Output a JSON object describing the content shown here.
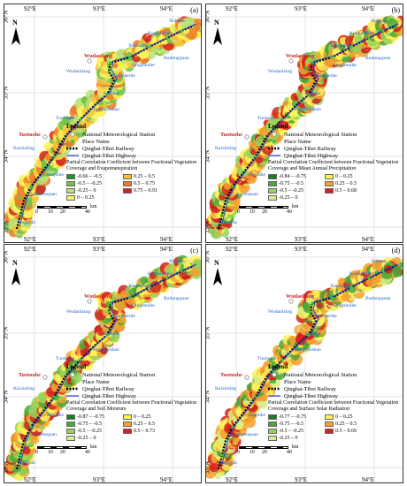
{
  "panels": [
    {
      "letter": "(a)",
      "coef_title": "Partial Correlation Coefficient between Fractional Vegetation Coverage and Evapotranspiration",
      "classes": [
        "-0.66 – -0.5",
        "-0.5 – -0.25",
        "-0.25 – 0",
        "0 – 0.25",
        "0.25 – 0.5",
        "0.5 – 0.75",
        "0.75 – 0.91"
      ],
      "class_colors": [
        "#2e8b2e",
        "#6ec24a",
        "#b7e07a",
        "#fff35a",
        "#f7c23a",
        "#f07a24",
        "#d42020"
      ]
    },
    {
      "letter": "(b)",
      "coef_title": "Partial Correlation Coefficient between Fractional Vegetation Coverage and Mean Annual Precipitation",
      "classes": [
        "-0.84 – -0.75",
        "-0.75 – -0.5",
        "-0.5 – -0.25",
        "-0.25 – 0",
        "0 – 0.25",
        "0.25 – 0.5",
        "0.5 – 0.68"
      ],
      "class_colors": [
        "#1e7a1e",
        "#4aa83a",
        "#95d25c",
        "#d9ef8a",
        "#fff35a",
        "#f5a030",
        "#d42020"
      ]
    },
    {
      "letter": "(c)",
      "coef_title": "Partial Correlation Coefficient between Fractional Vegetation Coverage and Soil Moisture",
      "classes": [
        "-0.87 – -0.75",
        "-0.75 – -0.5",
        "-0.5 – -0.25",
        "-0.25 – 0",
        "0 – 0.25",
        "0.25 – 0.5",
        "0.5 – 0.73"
      ],
      "class_colors": [
        "#1e7a1e",
        "#4aa83a",
        "#95d25c",
        "#d9ef8a",
        "#fff35a",
        "#f5a030",
        "#d42020"
      ]
    },
    {
      "letter": "(d)",
      "coef_title": "Partial Correlation Coefficient between Fractional Vegetation Coverage and Surface Solar Radiation",
      "classes": [
        "-0.77 – -0.75",
        "-0.75 – -0.5",
        "-0.5 – -0.25",
        "-0.25 – 0",
        "0 – 0.25",
        "0.25 – 0.5",
        "0.5 – 0.69"
      ],
      "class_colors": [
        "#1e7a1e",
        "#4aa83a",
        "#95d25c",
        "#d9ef8a",
        "#fff35a",
        "#f5a030",
        "#d42020"
      ]
    }
  ],
  "legend": {
    "title": "Legend",
    "station": "National Meteorological Station",
    "place": "Place Name",
    "railway": "Qinghai-Tibet Railway",
    "highway": "Qinghai-Tibet Highway"
  },
  "axes": {
    "x_ticks": [
      "92°E",
      "93°E",
      "94°E"
    ],
    "y_ticks": [
      "36°N",
      "35°N",
      "34°N",
      "33°N"
    ]
  },
  "places": {
    "xidatan": "Xidatan",
    "kunlunshan": "Kunlunshan",
    "xieshuihe": "Xieshuihe",
    "budongquan": "Budongquan",
    "wudaoliang_red": "Wudaoliang",
    "wudaoliang": "Wudaoliang",
    "qingshuihe": "Qingshuihe",
    "chumaerhe": "Chumaerhe",
    "beiluhe": "Beiluhe",
    "fenghuoshan": "Fenghuoshan",
    "tuotuohe": "Tuotuohe",
    "tuotuohe_red": "Tuotuohe",
    "kaixinling": "Kaixinling",
    "buqiuhe": "Buqiuhe",
    "laowenquan": "Laowenquan",
    "tanggula": "Tanggula"
  },
  "north_label": "N",
  "scale": {
    "labels": [
      "0",
      "10",
      "20",
      "40"
    ],
    "unit": "km"
  },
  "colors": {
    "place_blue": "#1e5fd0",
    "place_red": "#d42020",
    "highway": "#1e3fd0",
    "station": "#9c9c9c",
    "place_dot": "#33cc33"
  }
}
